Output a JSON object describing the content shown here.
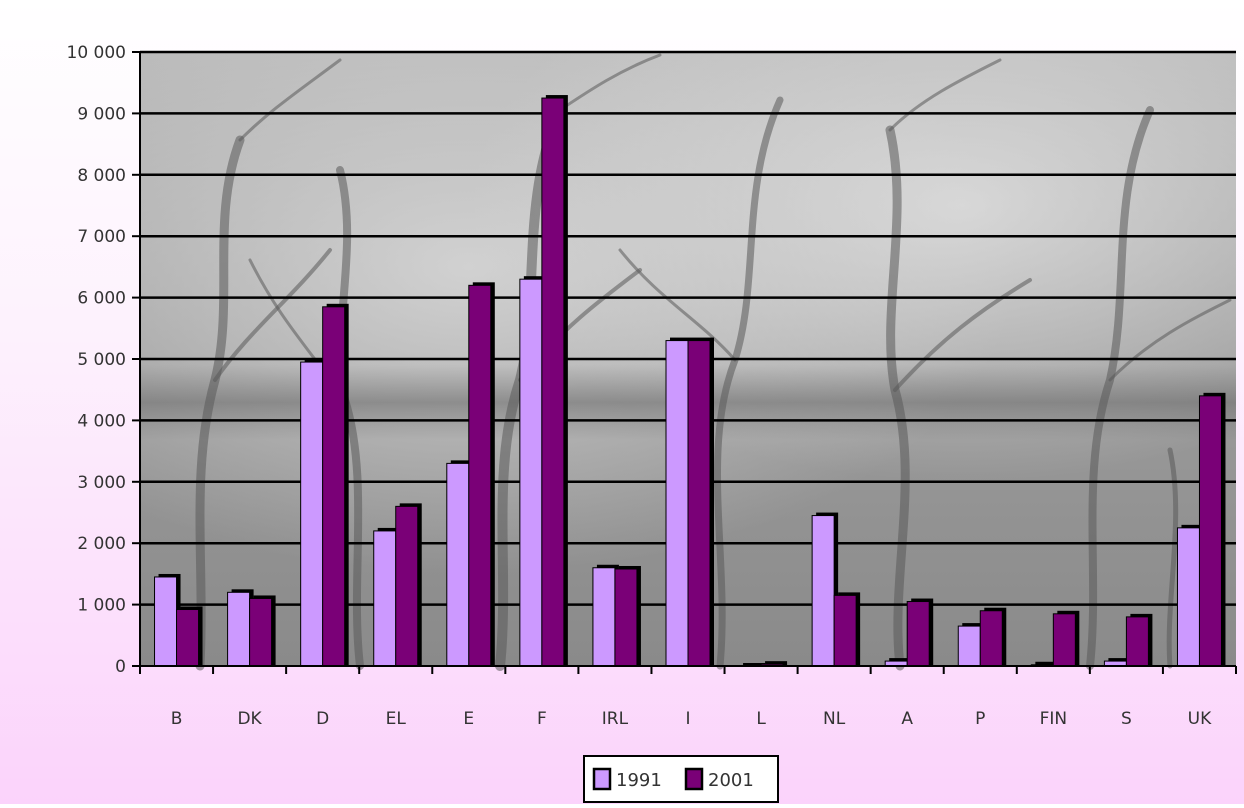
{
  "chart_data": {
    "type": "bar",
    "categories": [
      "B",
      "DK",
      "D",
      "EL",
      "E",
      "F",
      "IRL",
      "I",
      "L",
      "NL",
      "A",
      "P",
      "FIN",
      "S",
      "UK"
    ],
    "series": [
      {
        "name": "1991",
        "color": "#cc99ff",
        "values": [
          1450,
          1200,
          4950,
          2200,
          3300,
          6300,
          1600,
          5300,
          0,
          2450,
          80,
          650,
          20,
          80,
          2250
        ]
      },
      {
        "name": "2001",
        "color": "#7a0077",
        "values": [
          920,
          1100,
          5850,
          2600,
          6200,
          9250,
          1580,
          5300,
          30,
          1150,
          1050,
          900,
          850,
          800,
          4400
        ]
      }
    ],
    "ylim": [
      0,
      10000
    ],
    "ytick_values": [
      0,
      1000,
      2000,
      3000,
      4000,
      5000,
      6000,
      7000,
      8000,
      9000,
      10000
    ],
    "ytick_labels": [
      "0",
      "1 000",
      "2 000",
      "3 000",
      "4 000",
      "5 000",
      "6 000",
      "7 000",
      "8 000",
      "9 000",
      "10 000"
    ],
    "grid": true,
    "legend_position": "bottom-center",
    "plot_background": "photo of trees",
    "gridline_color": "#000000"
  }
}
